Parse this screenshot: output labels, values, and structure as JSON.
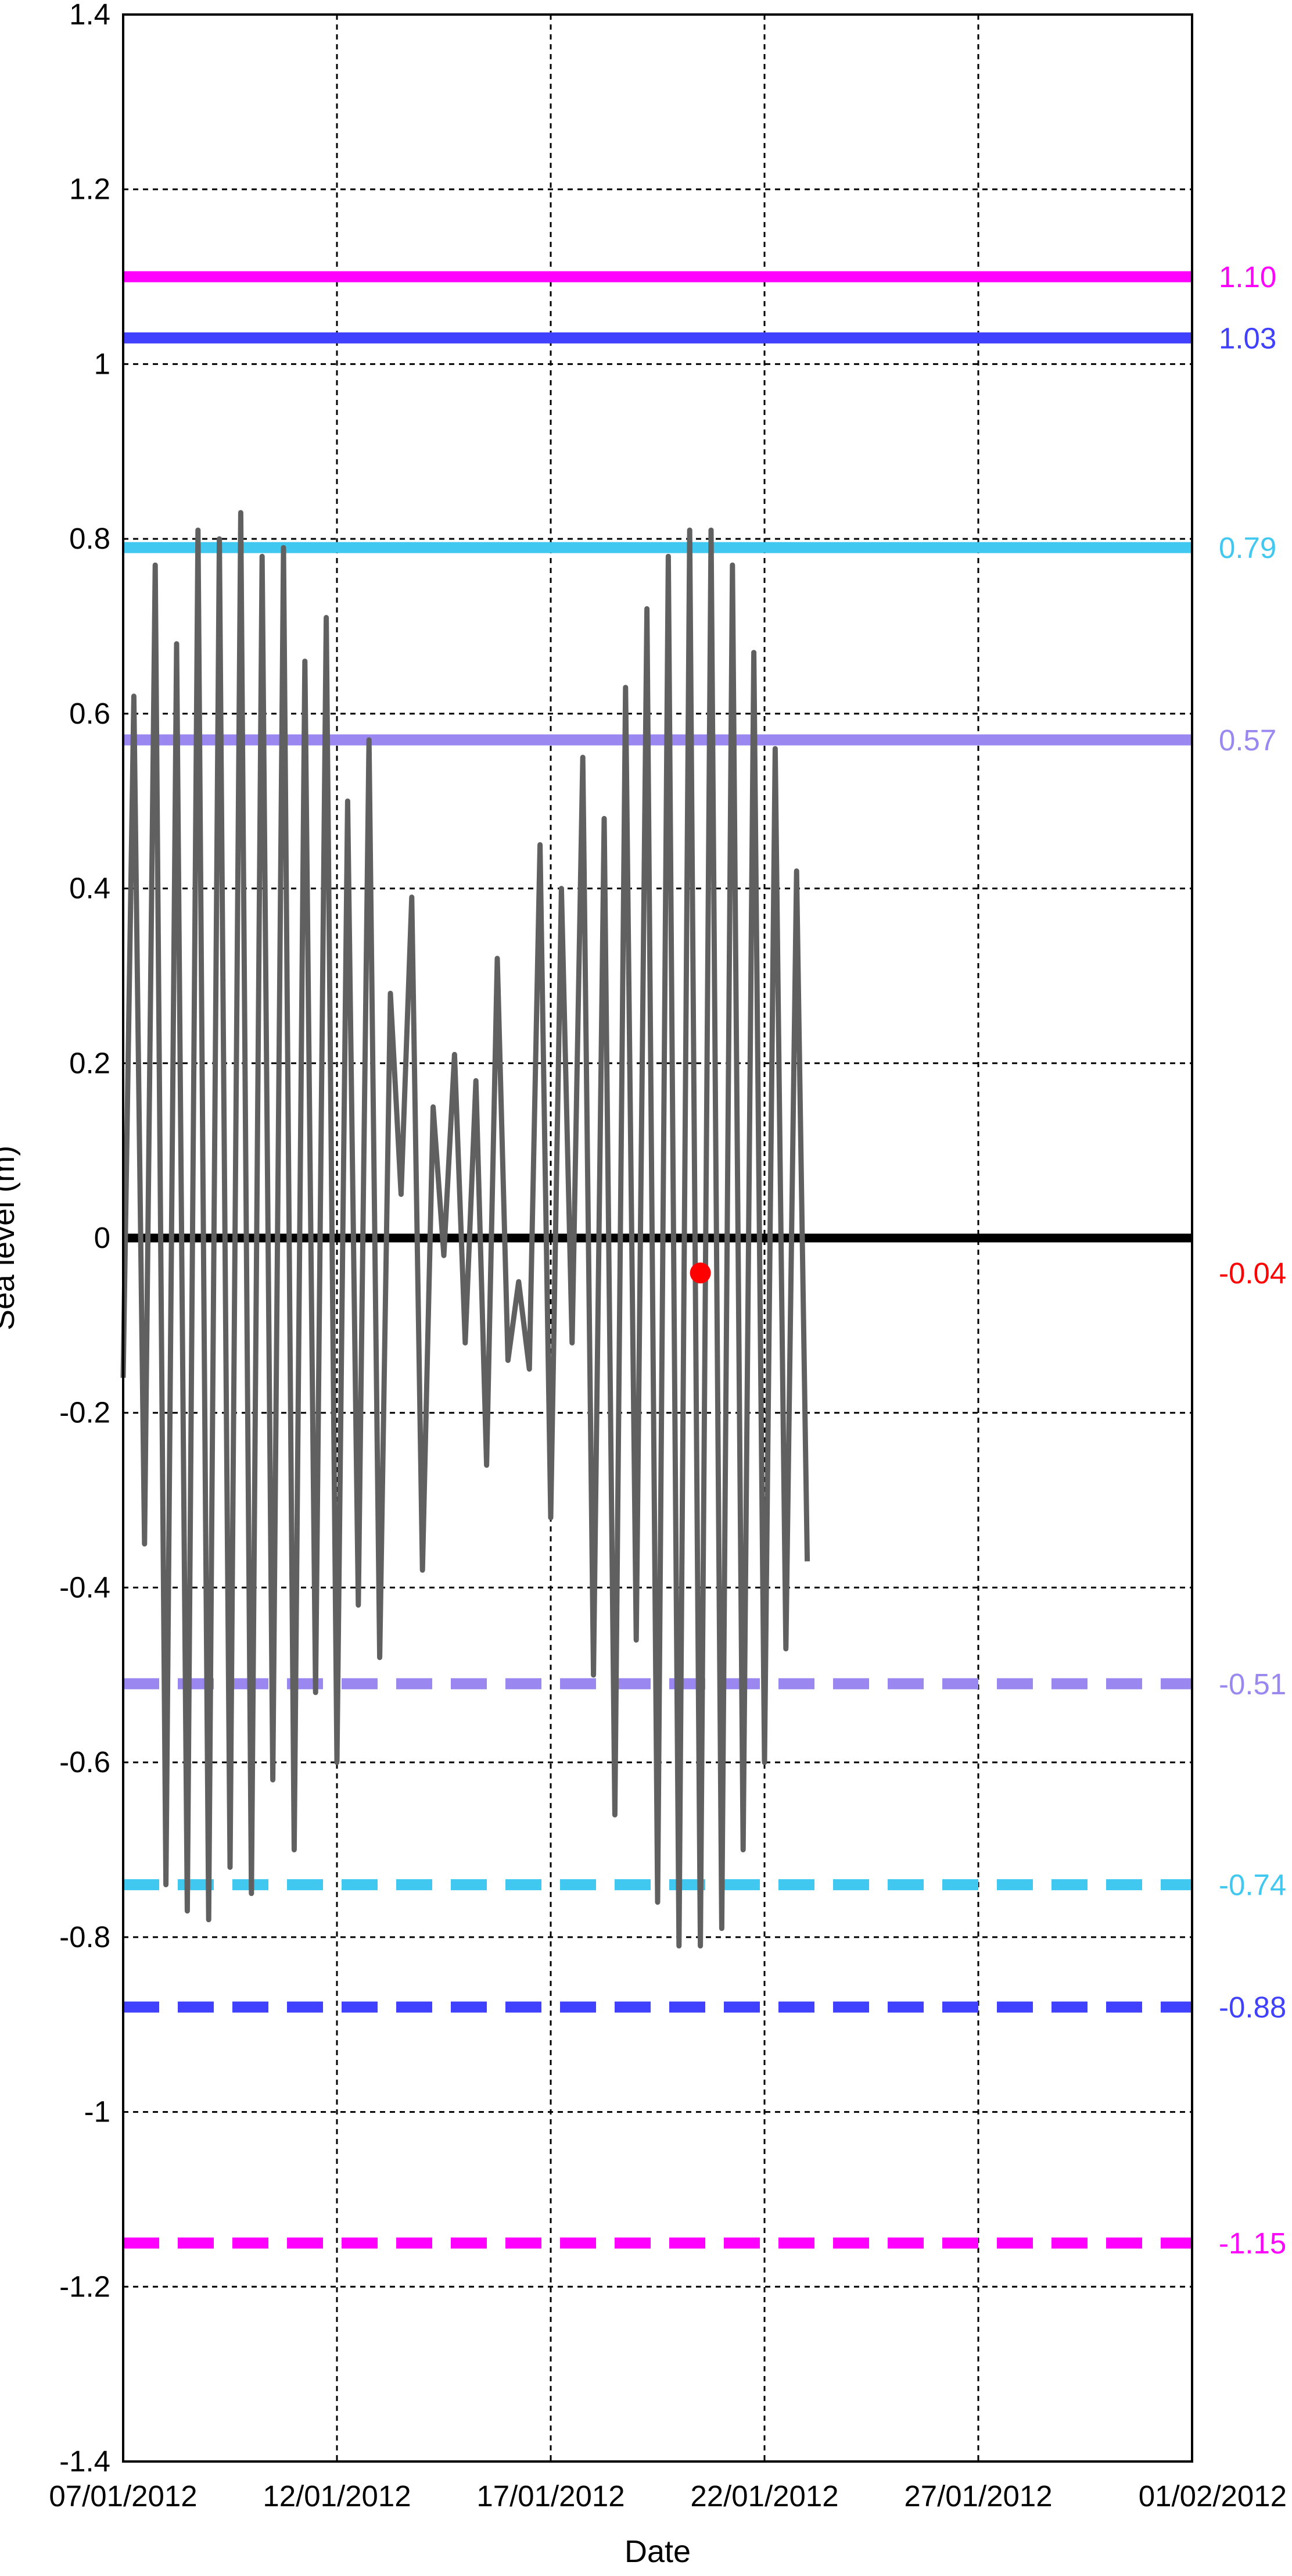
{
  "chart_data": {
    "type": "line",
    "title": "",
    "xlabel": "Date",
    "ylabel": "Sea level (m)",
    "ylim": [
      -1.4,
      1.4
    ],
    "xlim": [
      "07/01/2012",
      "01/02/2012"
    ],
    "x_ticks": [
      "07/01/2012",
      "12/01/2012",
      "17/01/2012",
      "22/01/2012",
      "27/01/2012",
      "01/02/2012"
    ],
    "y_ticks": [
      "1.4",
      "1.2",
      "1",
      "0.8",
      "0.6",
      "0.4",
      "0.2",
      "0",
      "-0.2",
      "-0.4",
      "-0.6",
      "-0.8",
      "-1",
      "-1.2",
      "-1.4"
    ],
    "grid": true,
    "zero_line": {
      "y": 0,
      "color": "#000000"
    },
    "series": [
      {
        "color": "#606060",
        "values": [
          [
            "07/01/2012 00:00",
            -0.16
          ],
          [
            "07/01/2012 06:00",
            0.62
          ],
          [
            "07/01/2012 12:00",
            -0.35
          ],
          [
            "07/01/2012 18:00",
            0.77
          ],
          [
            "08/01/2012 00:00",
            -0.74
          ],
          [
            "08/01/2012 06:00",
            0.68
          ],
          [
            "08/01/2012 12:00",
            -0.77
          ],
          [
            "08/01/2012 18:00",
            0.81
          ],
          [
            "09/01/2012 00:00",
            -0.78
          ],
          [
            "09/01/2012 06:00",
            0.8
          ],
          [
            "09/01/2012 12:00",
            -0.72
          ],
          [
            "09/01/2012 18:00",
            0.83
          ],
          [
            "10/01/2012 00:00",
            -0.75
          ],
          [
            "10/01/2012 06:00",
            0.78
          ],
          [
            "10/01/2012 12:00",
            -0.62
          ],
          [
            "10/01/2012 18:00",
            0.79
          ],
          [
            "11/01/2012 00:00",
            -0.7
          ],
          [
            "11/01/2012 06:00",
            0.66
          ],
          [
            "11/01/2012 12:00",
            -0.52
          ],
          [
            "11/01/2012 18:00",
            0.71
          ],
          [
            "12/01/2012 00:00",
            -0.6
          ],
          [
            "12/01/2012 06:00",
            0.5
          ],
          [
            "12/01/2012 12:00",
            -0.42
          ],
          [
            "12/01/2012 18:00",
            0.57
          ],
          [
            "13/01/2012 00:00",
            -0.48
          ],
          [
            "13/01/2012 06:00",
            0.28
          ],
          [
            "13/01/2012 12:00",
            0.05
          ],
          [
            "13/01/2012 18:00",
            0.39
          ],
          [
            "14/01/2012 00:00",
            -0.38
          ],
          [
            "14/01/2012 06:00",
            0.15
          ],
          [
            "14/01/2012 12:00",
            -0.02
          ],
          [
            "14/01/2012 18:00",
            0.21
          ],
          [
            "15/01/2012 00:00",
            -0.12
          ],
          [
            "15/01/2012 06:00",
            0.18
          ],
          [
            "15/01/2012 12:00",
            -0.26
          ],
          [
            "15/01/2012 18:00",
            0.32
          ],
          [
            "16/01/2012 00:00",
            -0.14
          ],
          [
            "16/01/2012 06:00",
            -0.05
          ],
          [
            "16/01/2012 12:00",
            -0.15
          ],
          [
            "16/01/2012 18:00",
            0.45
          ],
          [
            "17/01/2012 00:00",
            -0.32
          ],
          [
            "17/01/2012 06:00",
            0.4
          ],
          [
            "17/01/2012 12:00",
            -0.12
          ],
          [
            "17/01/2012 18:00",
            0.55
          ],
          [
            "18/01/2012 00:00",
            -0.5
          ],
          [
            "18/01/2012 06:00",
            0.48
          ],
          [
            "18/01/2012 12:00",
            -0.66
          ],
          [
            "18/01/2012 18:00",
            0.63
          ],
          [
            "19/01/2012 00:00",
            -0.46
          ],
          [
            "19/01/2012 06:00",
            0.72
          ],
          [
            "19/01/2012 12:00",
            -0.76
          ],
          [
            "19/01/2012 18:00",
            0.78
          ],
          [
            "20/01/2012 00:00",
            -0.81
          ],
          [
            "20/01/2012 06:00",
            0.81
          ],
          [
            "20/01/2012 12:00",
            -0.81
          ],
          [
            "20/01/2012 18:00",
            0.81
          ],
          [
            "21/01/2012 00:00",
            -0.79
          ],
          [
            "21/01/2012 06:00",
            0.77
          ],
          [
            "21/01/2012 12:00",
            -0.7
          ],
          [
            "21/01/2012 18:00",
            0.67
          ],
          [
            "22/01/2012 00:00",
            -0.6
          ],
          [
            "22/01/2012 06:00",
            0.56
          ],
          [
            "22/01/2012 12:00",
            -0.47
          ],
          [
            "22/01/2012 18:00",
            0.42
          ],
          [
            "23/01/2012 00:00",
            -0.37
          ]
        ]
      }
    ],
    "reference_lines": [
      {
        "value": 1.1,
        "label": "1.10",
        "color": "#ff00ff",
        "style": "solid"
      },
      {
        "value": 1.03,
        "label": "1.03",
        "color": "#4040ff",
        "style": "solid"
      },
      {
        "value": 0.79,
        "label": "0.79",
        "color": "#40c8f0",
        "style": "solid"
      },
      {
        "value": 0.57,
        "label": "0.57",
        "color": "#9a88f0",
        "style": "solid"
      },
      {
        "value": -0.51,
        "label": "-0.51",
        "color": "#9a88f0",
        "style": "dashed"
      },
      {
        "value": -0.74,
        "label": "-0.74",
        "color": "#40c8f0",
        "style": "dashed"
      },
      {
        "value": -0.88,
        "label": "-0.88",
        "color": "#4040ff",
        "style": "dashed"
      },
      {
        "value": -1.15,
        "label": "-1.15",
        "color": "#ff00ff",
        "style": "dashed"
      }
    ],
    "marker": {
      "x": "20/01/2012 12:00",
      "value": -0.04,
      "label": "-0.04",
      "color": "#ff0000"
    }
  }
}
